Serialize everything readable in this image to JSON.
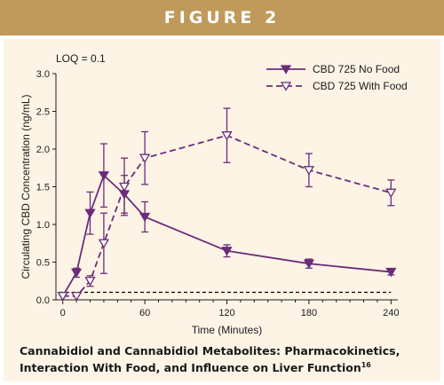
{
  "banner": {
    "title": "FIGURE 2"
  },
  "caption": {
    "text": "Cannabidiol and Cannabidiol Metabolites: Pharmacokinetics, Interaction With Food, and Influence on Liver Function",
    "reference": "16"
  },
  "colors": {
    "banner": "#c09a5b",
    "panel": "#fdf4e6",
    "series": "#6b2d7a",
    "loq_line": "#000000"
  },
  "chart_data": {
    "type": "line",
    "title": "",
    "annotation": "LOQ = 0.1",
    "xlabel": "Time (Minutes)",
    "ylabel": "Circulating CBD Concentration (ng/mL)",
    "xlim": [
      -5,
      245
    ],
    "ylim": [
      0,
      3.0
    ],
    "x_ticks": [
      0,
      60,
      120,
      180,
      240
    ],
    "x_minor_ticks": [
      -10,
      10,
      20,
      30,
      40,
      50,
      70,
      80,
      90,
      100,
      110,
      130,
      140,
      150,
      160,
      170,
      190,
      200,
      210,
      220,
      230
    ],
    "y_ticks": [
      "0.0",
      "0.5",
      "1.0",
      "1.5",
      "2.0",
      "2.5",
      "3.0"
    ],
    "legend_position": "top-right",
    "loq": 0.1,
    "series": [
      {
        "name": "CBD 725 No Food",
        "style": "solid",
        "marker": "filled-down-triangle",
        "points": [
          {
            "x": 0,
            "y": 0.05
          },
          {
            "x": 10,
            "y": 0.36,
            "err": 0.06
          },
          {
            "x": 20,
            "y": 1.15,
            "err": 0.28
          },
          {
            "x": 30,
            "y": 1.65,
            "err": 0.42
          },
          {
            "x": 45,
            "y": 1.4,
            "err": 0.25
          },
          {
            "x": 60,
            "y": 1.1,
            "err": 0.2
          },
          {
            "x": 120,
            "y": 0.65,
            "err": 0.08
          },
          {
            "x": 180,
            "y": 0.48,
            "err": 0.06
          },
          {
            "x": 240,
            "y": 0.37,
            "err": 0.04
          }
        ]
      },
      {
        "name": "CBD 725 With Food",
        "style": "dashed",
        "marker": "open-down-triangle",
        "points": [
          {
            "x": 0,
            "y": 0.05
          },
          {
            "x": 10,
            "y": 0.05
          },
          {
            "x": 20,
            "y": 0.25,
            "err": 0.07
          },
          {
            "x": 30,
            "y": 0.75,
            "err": 0.4
          },
          {
            "x": 45,
            "y": 1.5,
            "err": 0.38
          },
          {
            "x": 60,
            "y": 1.88,
            "err": 0.35
          },
          {
            "x": 120,
            "y": 2.18,
            "err": 0.36
          },
          {
            "x": 180,
            "y": 1.72,
            "err": 0.22
          },
          {
            "x": 240,
            "y": 1.42,
            "err": 0.17
          }
        ]
      }
    ]
  }
}
